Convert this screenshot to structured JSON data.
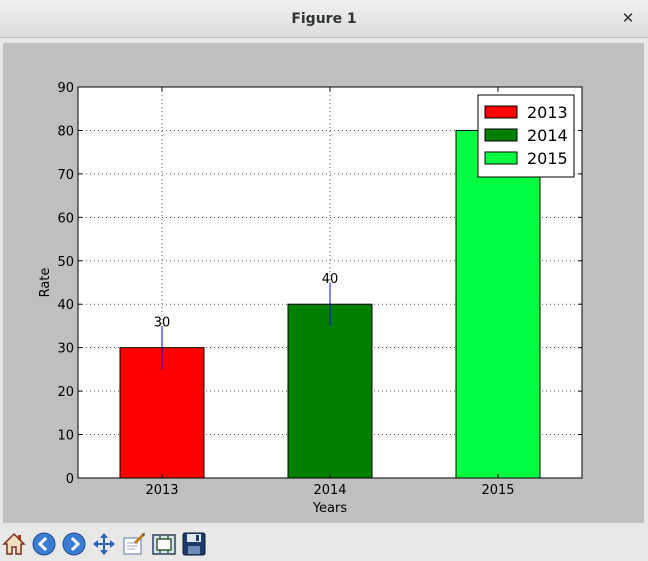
{
  "window": {
    "title": "Figure 1"
  },
  "toolbar": {
    "buttons": [
      {
        "icon": "home-icon"
      },
      {
        "icon": "back-icon"
      },
      {
        "icon": "forward-icon"
      },
      {
        "icon": "pan-icon"
      },
      {
        "icon": "zoom-icon"
      },
      {
        "icon": "subplots-icon"
      },
      {
        "icon": "save-icon"
      }
    ]
  },
  "chart_data": {
    "type": "bar",
    "title": "",
    "xlabel": "Years",
    "ylabel": "Rate",
    "ylim": [
      0,
      90
    ],
    "yticks": [
      0,
      10,
      20,
      30,
      40,
      50,
      60,
      70,
      80,
      90
    ],
    "grid": true,
    "legend_position": "top-right",
    "categories": [
      "2013",
      "2014",
      "2015"
    ],
    "series": [
      {
        "name": "2013",
        "values": [
          30,
          null,
          null
        ],
        "error": [
          5,
          null,
          null
        ],
        "color": "#ff0000",
        "label": "30"
      },
      {
        "name": "2014",
        "values": [
          null,
          40,
          null
        ],
        "error": [
          null,
          5,
          null
        ],
        "color": "#008000",
        "label": "40"
      },
      {
        "name": "2015",
        "values": [
          null,
          null,
          80
        ],
        "error": [
          null,
          null,
          0
        ],
        "color": "#00ff40",
        "label": ""
      }
    ],
    "error_color": "#0000ff"
  }
}
